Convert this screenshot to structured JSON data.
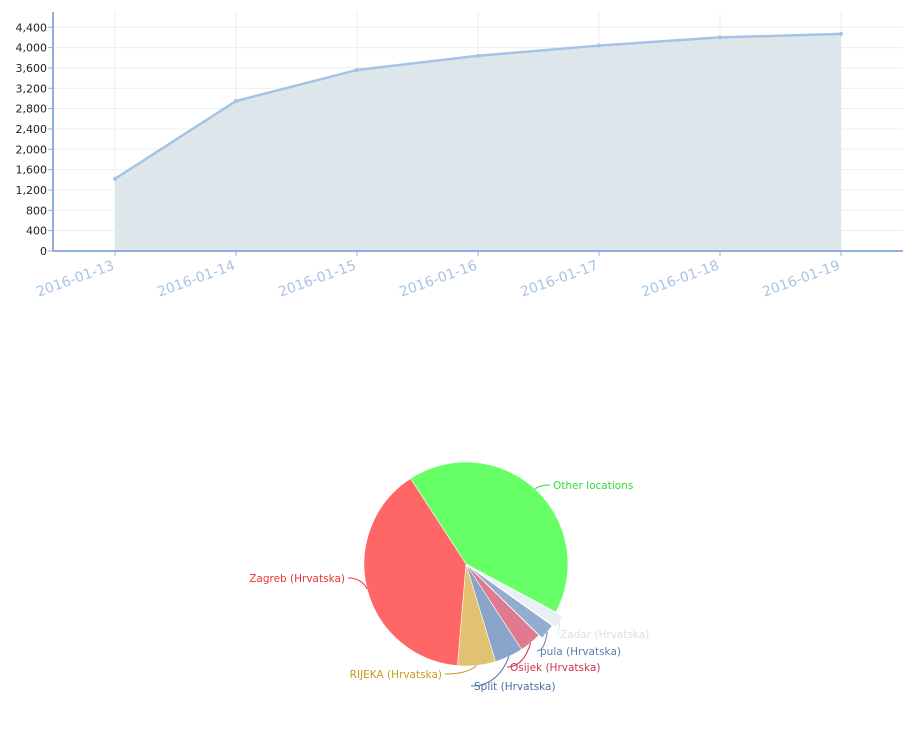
{
  "chart_data": [
    {
      "type": "area",
      "title": "",
      "xlabel": "",
      "ylabel": "",
      "x": [
        "2016-01-13",
        "2016-01-14",
        "2016-01-15",
        "2016-01-16",
        "2016-01-17",
        "2016-01-18",
        "2016-01-19"
      ],
      "y": [
        1420,
        2950,
        3560,
        3840,
        4040,
        4200,
        4270
      ],
      "yticks": [
        "0",
        "400",
        "800",
        "1,200",
        "1,600",
        "2,000",
        "2,400",
        "2,800",
        "3,200",
        "3,600",
        "4,000",
        "4,400"
      ],
      "ytick_values": [
        0,
        400,
        800,
        1200,
        1600,
        2000,
        2400,
        2800,
        3200,
        3600,
        4000,
        4400
      ],
      "ylim": [
        0,
        4700
      ],
      "grid": true,
      "colors": {
        "line": "#a5c3e5",
        "fill": "#dde6ea",
        "axis": "#8fb0db",
        "grid": "#e8eef2",
        "tick_label": "#a8c3e6"
      }
    },
    {
      "type": "pie",
      "slices": [
        {
          "label": "Other locations",
          "value": 42.0,
          "color": "#66ff66",
          "label_color": "#33dd33"
        },
        {
          "label": "Zadar (Hrvatska)",
          "value": 2.0,
          "color": "#e8f0f4",
          "label_color": "#d6e2ea"
        },
        {
          "label": "pula (Hrvatska)",
          "value": 2.5,
          "color": "#93acd0",
          "label_color": "#5a7fb0"
        },
        {
          "label": "Osijek (Hrvatska)",
          "value": 3.5,
          "color": "#e07a8e",
          "label_color": "#d03050"
        },
        {
          "label": "Split (Hrvatska)",
          "value": 4.5,
          "color": "#88a4c8",
          "label_color": "#4a6fa0"
        },
        {
          "label": "RIJEKA (Hrvatska)",
          "value": 6.0,
          "color": "#e0c270",
          "label_color": "#c89a20"
        },
        {
          "label": "Zagreb (Hrvatska)",
          "value": 39.5,
          "color": "#ff6666",
          "label_color": "#ee3333"
        }
      ]
    }
  ]
}
